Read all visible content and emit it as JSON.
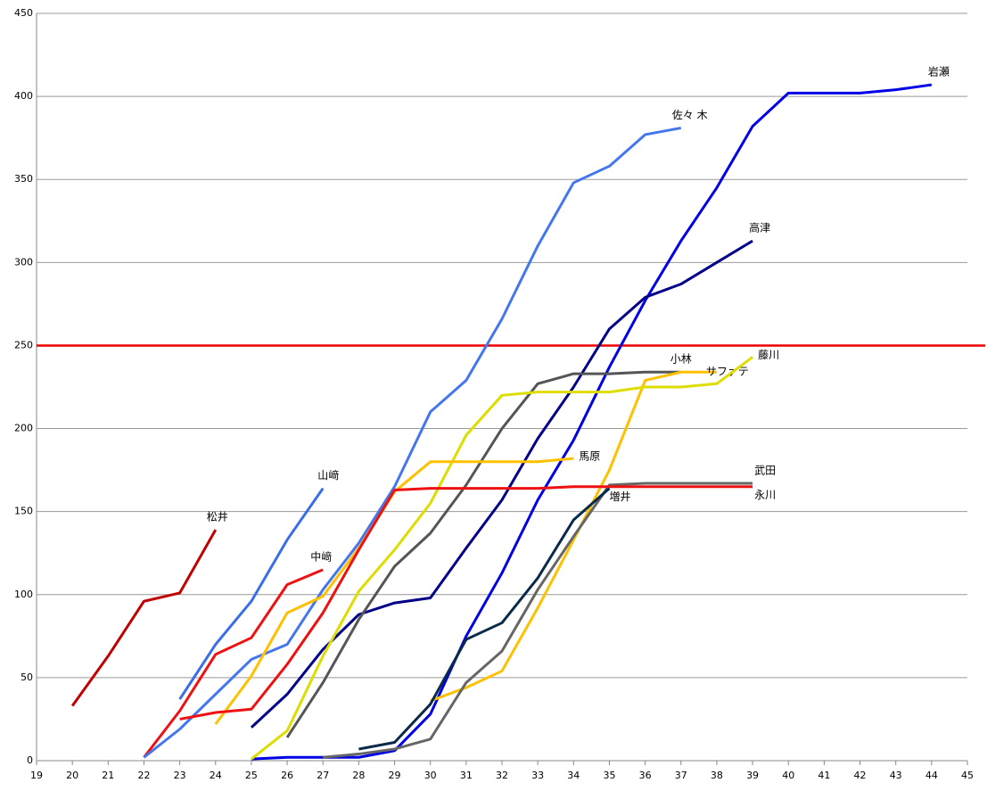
{
  "chart_data": {
    "type": "line",
    "xlim": [
      19,
      45
    ],
    "xticks": [
      19,
      20,
      21,
      22,
      23,
      24,
      25,
      26,
      27,
      28,
      29,
      30,
      31,
      32,
      33,
      34,
      35,
      36,
      37,
      38,
      39,
      40,
      41,
      42,
      43,
      44,
      45
    ],
    "ylim": [
      0,
      450
    ],
    "yticks": [
      0,
      50,
      100,
      150,
      200,
      250,
      300,
      350,
      400,
      450
    ],
    "grid": true,
    "hline": 250,
    "hline_color": "#ee0000",
    "series": [
      {
        "name": "松井",
        "color": "#c00000",
        "x": [
          20,
          21,
          22,
          23,
          24
        ],
        "values": [
          33,
          63,
          96,
          101,
          139
        ]
      },
      {
        "name": "山﨑",
        "color": "#3a6ee8",
        "x": [
          23,
          24,
          25,
          26,
          27
        ],
        "values": [
          37,
          70,
          96,
          133,
          164
        ]
      },
      {
        "name": "中﨑",
        "color": "#ee1111",
        "x": [
          22,
          23,
          24,
          25,
          26,
          27
        ],
        "values": [
          2,
          30,
          64,
          74,
          106,
          115
        ]
      },
      {
        "name": "佐々 木",
        "color": "#4477ee",
        "x": [
          22,
          23,
          24,
          25,
          26,
          27,
          28,
          29,
          30,
          31,
          32,
          33,
          34,
          35,
          36,
          37
        ],
        "values": [
          2,
          19,
          40,
          61,
          70,
          103,
          131,
          165,
          210,
          229,
          266,
          310,
          348,
          358,
          377,
          381
        ]
      },
      {
        "name": "岩瀬",
        "color": "#0000e6",
        "x": [
          25,
          26,
          27,
          28,
          29,
          30,
          31,
          32,
          33,
          34,
          35,
          36,
          37,
          38,
          39,
          40,
          41,
          42,
          43,
          44
        ],
        "values": [
          1,
          2,
          2,
          2,
          6,
          28,
          75,
          113,
          157,
          193,
          237,
          277,
          313,
          345,
          382,
          402,
          402,
          402,
          404,
          407
        ]
      },
      {
        "name": "高津",
        "color": "#000088",
        "x": [
          25,
          26,
          27,
          28,
          29,
          30,
          31,
          32,
          33,
          34,
          35,
          36,
          37,
          38,
          39
        ],
        "values": [
          20,
          40,
          67,
          88,
          95,
          98,
          128,
          157,
          194,
          225,
          260,
          279,
          287,
          300,
          313
        ]
      },
      {
        "name": "小林",
        "color": "#555555",
        "x": [
          26,
          27,
          28,
          29,
          30,
          31,
          32,
          33,
          34,
          35,
          36,
          37
        ],
        "values": [
          14,
          47,
          85,
          117,
          137,
          166,
          200,
          227,
          233,
          233,
          234,
          234
        ]
      },
      {
        "name": "サファテ",
        "color": "#ffc000",
        "x": [
          30,
          31,
          32,
          33,
          34,
          35,
          36,
          37,
          38
        ],
        "values": [
          36,
          44,
          54,
          92,
          133,
          175,
          229,
          234,
          234
        ]
      },
      {
        "name": "藤川",
        "color": "#dddd00",
        "x": [
          25,
          26,
          27,
          28,
          29,
          30,
          31,
          32,
          33,
          34,
          35,
          36,
          37,
          38,
          39
        ],
        "values": [
          1,
          18,
          63,
          102,
          127,
          155,
          196,
          220,
          222,
          222,
          222,
          225,
          225,
          227,
          243
        ]
      },
      {
        "name": "馬原",
        "color": "#ffc000",
        "x": [
          24,
          25,
          26,
          27,
          28,
          29,
          30,
          31,
          32,
          33,
          34
        ],
        "values": [
          22,
          51,
          89,
          99,
          128,
          162,
          180,
          180,
          180,
          180,
          182
        ]
      },
      {
        "name": "武田",
        "color": "#666666",
        "x": [
          27,
          28,
          29,
          30,
          31,
          32,
          33,
          34,
          35,
          36,
          37,
          38,
          39
        ],
        "values": [
          2,
          4,
          7,
          13,
          47,
          66,
          103,
          135,
          166,
          167,
          167,
          167,
          167
        ]
      },
      {
        "name": "永川",
        "color": "#ee1111",
        "x": [
          23,
          24,
          25,
          26,
          27,
          28,
          29,
          30,
          31,
          32,
          33,
          34,
          35,
          36,
          37,
          38,
          39
        ],
        "values": [
          25,
          29,
          31,
          58,
          89,
          127,
          163,
          164,
          164,
          164,
          164,
          165,
          165,
          165,
          165,
          165,
          165
        ]
      },
      {
        "name": "増井",
        "color": "#0a2a4a",
        "x": [
          28,
          29,
          30,
          31,
          32,
          33,
          34,
          35
        ],
        "values": [
          7,
          11,
          34,
          73,
          83,
          110,
          145,
          164
        ]
      }
    ]
  }
}
